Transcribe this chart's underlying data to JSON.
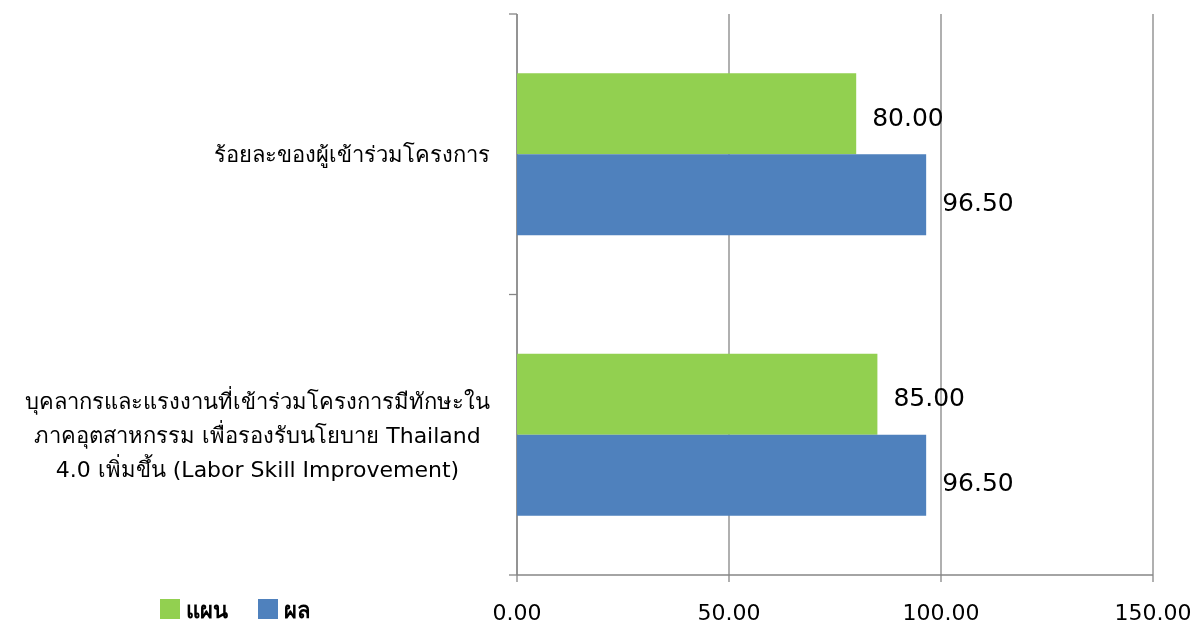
{
  "chart_data": {
    "type": "bar",
    "orientation": "horizontal",
    "categories": [
      "ร้อยละของผู้เข้าร่วมโครงการ",
      "บุคลากรและแรงงานที่เข้าร่วมโครงการมีทักษะใน ภาคอุตสาหกรรม เพื่อรองรับนโยบาย Thailand 4.0 เพิ่มขึ้น (Labor Skill  Improvement)"
    ],
    "series": [
      {
        "name": "แผน",
        "color": "#92d050",
        "values": [
          80,
          85
        ],
        "value_labels": [
          "80.00",
          "85.00"
        ]
      },
      {
        "name": "ผล",
        "color": "#4f81bd",
        "values": [
          96.5,
          96.5
        ],
        "value_labels": [
          "96.50",
          "96.50"
        ]
      }
    ],
    "xlim": [
      0,
      150
    ],
    "xticks": [
      {
        "value": 0,
        "label": "0.00"
      },
      {
        "value": 50,
        "label": "50.00"
      },
      {
        "value": 100,
        "label": "100.00"
      },
      {
        "value": 150,
        "label": "150.00"
      }
    ],
    "grid": "x",
    "legend": "bottom left"
  }
}
